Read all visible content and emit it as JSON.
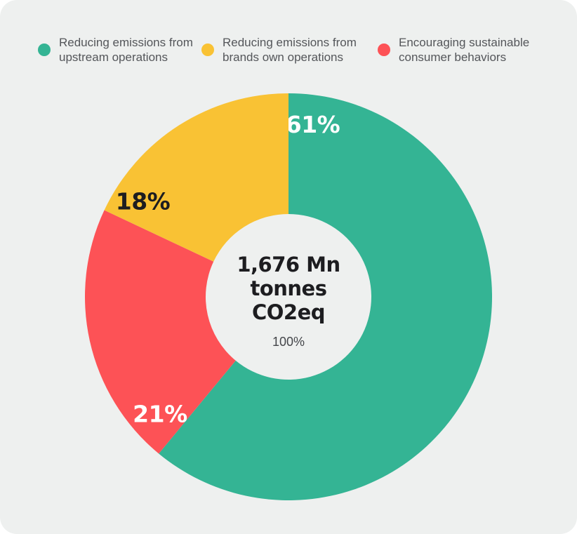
{
  "card": {
    "background": "#eef0ef"
  },
  "legend": {
    "items": [
      {
        "id": "upstream-operations",
        "lines": [
          "Reducing emissions from",
          "upstream operations"
        ],
        "color": "#34b494"
      },
      {
        "id": "brands-own-operations",
        "lines": [
          "Reducing emissions from",
          "brands own operations"
        ],
        "color": "#f9c234"
      },
      {
        "id": "consumer-behaviors",
        "lines": [
          "Encouraging sustainable",
          "consumer behaviors"
        ],
        "color": "#fd5256"
      }
    ]
  },
  "center": {
    "lines": [
      "1,676 Mn",
      "tonnes",
      "CO2eq"
    ],
    "percent": "100%"
  },
  "chart_data": {
    "type": "pie",
    "variant": "donut",
    "title": "",
    "categories": [
      "Reducing emissions from upstream operations",
      "Encouraging sustainable consumer behaviors",
      "Reducing emissions from brands own operations"
    ],
    "ids": [
      "upstream-operations",
      "consumer-behaviors",
      "brands-own-operations"
    ],
    "values": [
      61,
      21,
      18
    ],
    "unit": "%",
    "colors": [
      "#34b494",
      "#fd5256",
      "#f9c234"
    ],
    "slice_labels": [
      "61%",
      "21%",
      "18%"
    ],
    "slice_label_colors": [
      "#ffffff",
      "#ffffff",
      "#1d1d20"
    ],
    "center_label": "1,676 Mn tonnes CO2eq",
    "center_sublabel": "100%",
    "total": 100,
    "start_angle_deg": 0,
    "direction": "clockwise",
    "legend_position": "top"
  }
}
